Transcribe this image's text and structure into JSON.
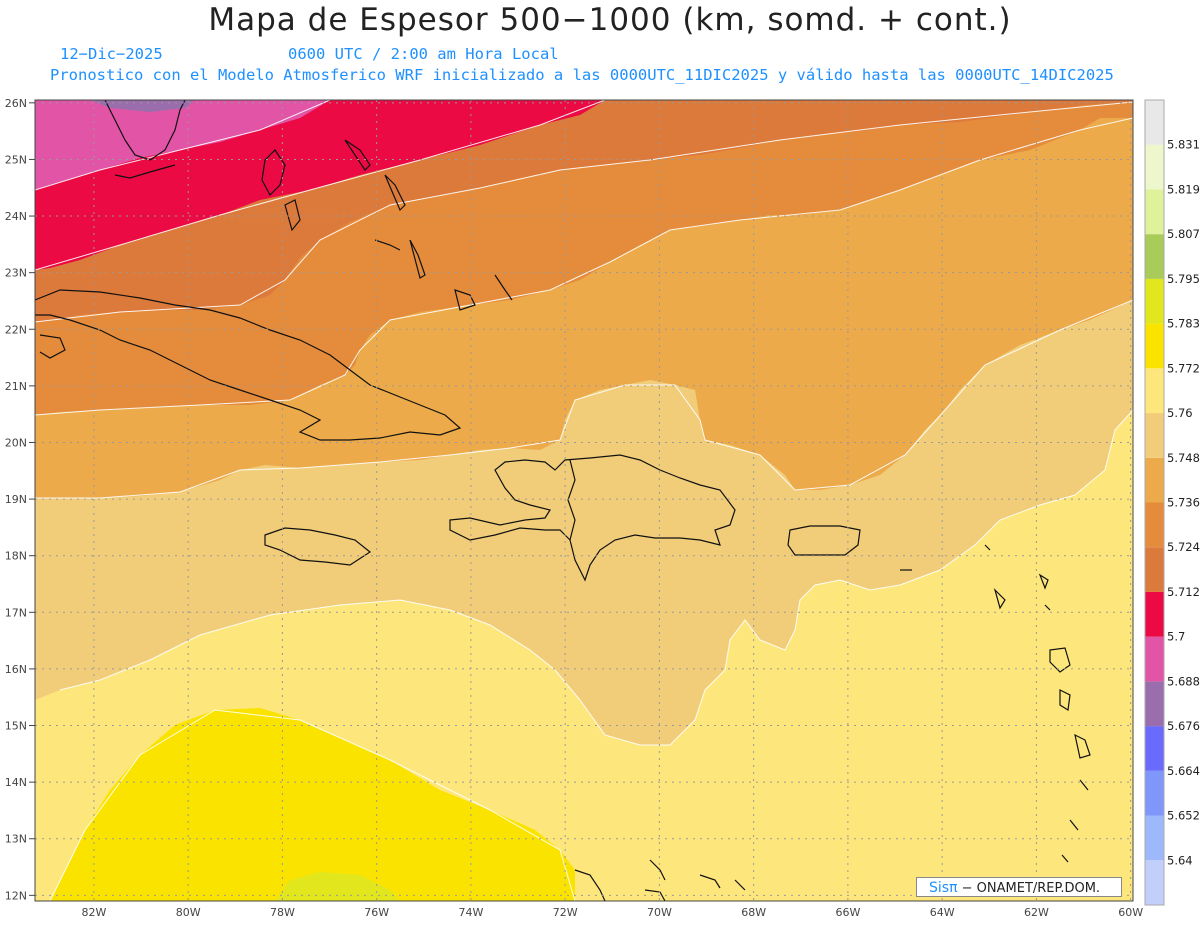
{
  "title": "Mapa de Espesor 500−1000 (km, somd. + cont.)",
  "subtitle_date": "12−Dic−2025",
  "subtitle_time": "0600 UTC / 2:00 am Hora Local",
  "subtitle_model": "Pronostico con el Modelo Atmosferico WRF inicializado a las 0000UTC_11DIC2025 y válido hasta las  0000UTC_14DIC2025",
  "credit": {
    "logo": "Sisπ",
    "text": "− ONAMET/REP.DOM."
  },
  "map": {
    "lon_labels": [
      "82W",
      "80W",
      "78W",
      "76W",
      "74W",
      "72W",
      "70W",
      "68W",
      "66W",
      "64W",
      "62W",
      "60W"
    ],
    "lat_labels": [
      "26N",
      "25N",
      "24N",
      "23N",
      "22N",
      "21N",
      "20N",
      "19N",
      "18N",
      "17N",
      "16N",
      "15N",
      "14N",
      "13N",
      "12N"
    ],
    "lon_range": [
      -83.25,
      -59.95
    ],
    "lat_range": [
      11.9,
      26.05
    ],
    "grid": true
  },
  "colorbar": {
    "levels": [
      "5.64",
      "5.652",
      "5.664",
      "5.676",
      "5.688",
      "5.7",
      "5.712",
      "5.724",
      "5.736",
      "5.748",
      "5.76",
      "5.772",
      "5.783",
      "5.795",
      "5.807",
      "5.819",
      "5.831"
    ],
    "colors": [
      "#c2cffa",
      "#9db8fb",
      "#7f96fb",
      "#6a6afc",
      "#9a6ead",
      "#e255a6",
      "#ec0a44",
      "#dc7a3b",
      "#e58c3c",
      "#ecaa4a",
      "#f1cd7a",
      "#fde77d",
      "#fbe300",
      "#e1e61d",
      "#a8cb5a",
      "#dff29b",
      "#eef7cc",
      "#e8e8e8"
    ]
  }
}
